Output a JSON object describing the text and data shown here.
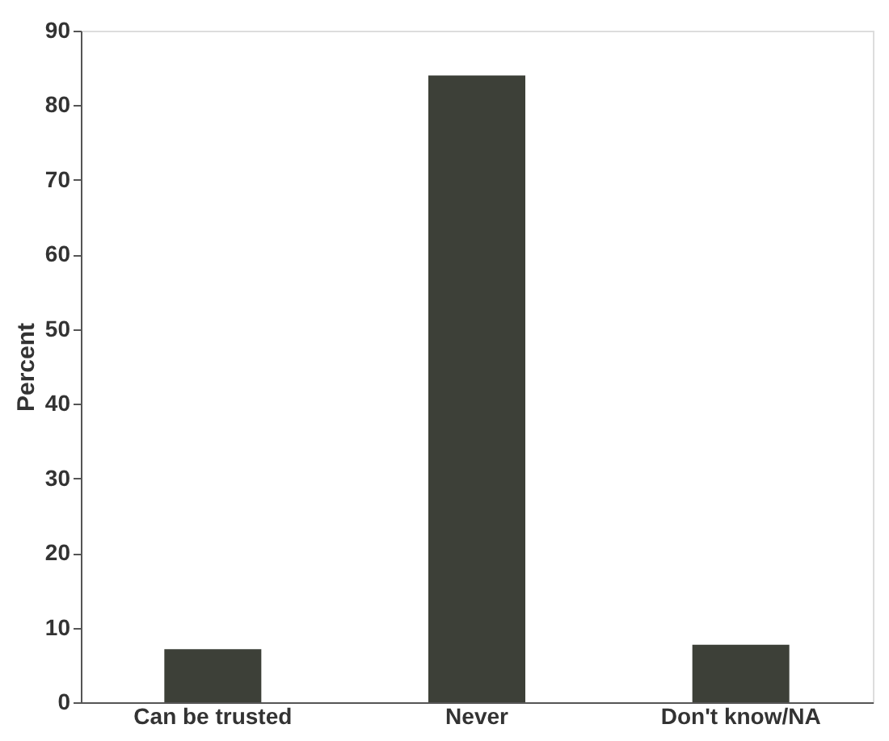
{
  "chart_data": {
    "type": "bar",
    "ylabel": "Percent",
    "categories": [
      "Can be trusted",
      "Never",
      "Don't know/NA"
    ],
    "values": [
      7.1,
      84,
      7.7
    ],
    "color": "#3d4038",
    "ylim": [
      0,
      90
    ],
    "yticks": [
      0,
      10,
      20,
      30,
      40,
      50,
      60,
      70,
      80,
      90
    ],
    "grid": false
  }
}
